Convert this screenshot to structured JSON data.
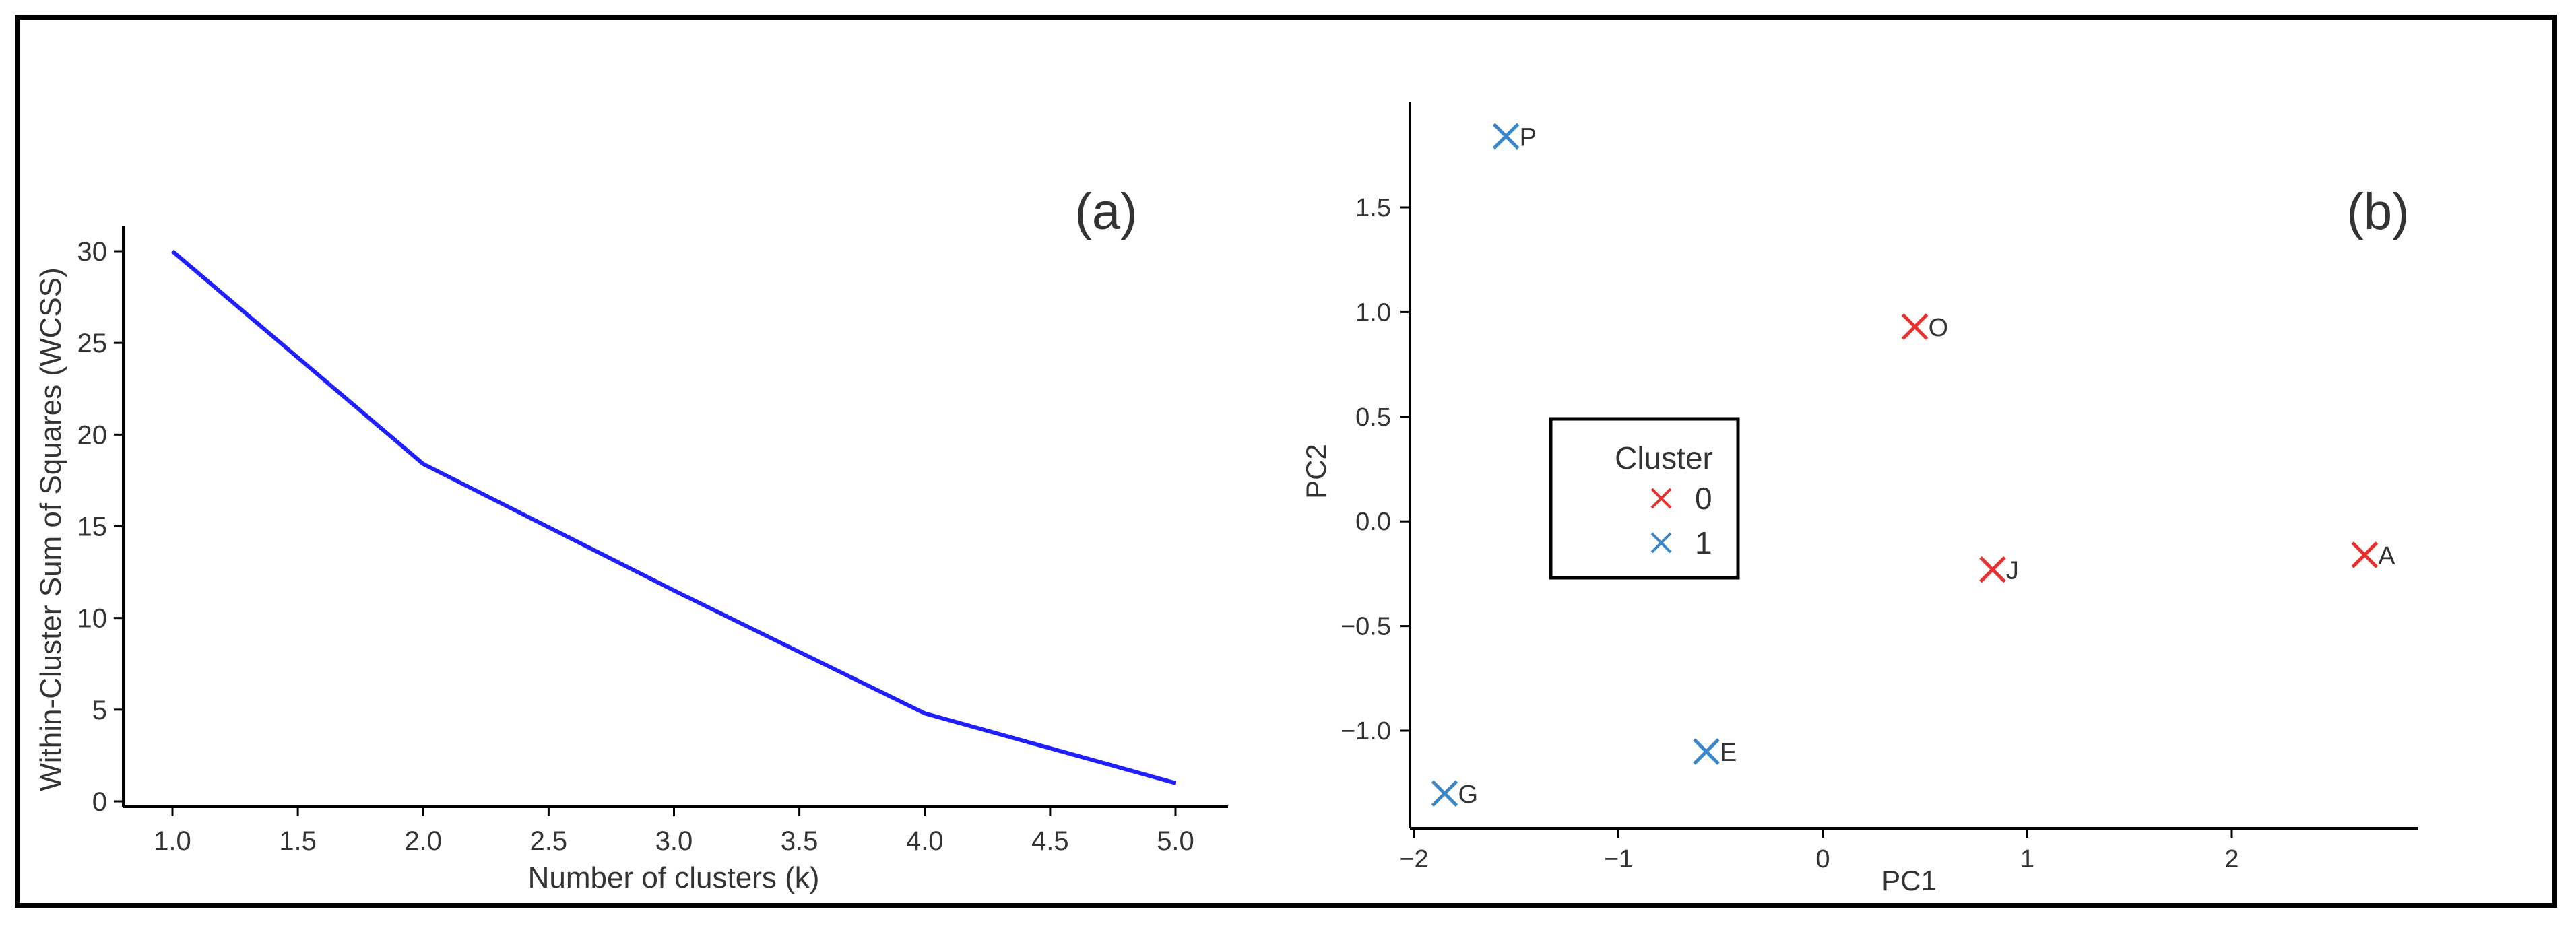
{
  "chart_data": [
    {
      "type": "line",
      "panel_label": "(a)",
      "xlabel": "Number of clusters (k)",
      "ylabel": "Within-Cluster Sum of Squares (WCSS)",
      "xlim": [
        0.8,
        5.2
      ],
      "ylim": [
        -0.5,
        31.5
      ],
      "xticks": [
        "1.0",
        "1.5",
        "2.0",
        "2.5",
        "3.0",
        "3.5",
        "4.0",
        "4.5",
        "5.0"
      ],
      "yticks": [
        "0",
        "5",
        "10",
        "15",
        "20",
        "25",
        "30"
      ],
      "series": [
        {
          "color": "#1f1fff",
          "x": [
            1,
            2,
            3,
            4,
            5
          ],
          "y": [
            30.0,
            18.4,
            11.5,
            4.8,
            1.0
          ]
        }
      ],
      "grid": false
    },
    {
      "type": "scatter",
      "panel_label": "(b)",
      "xlabel": "PC1",
      "ylabel": "PC2",
      "xlim": [
        -2.05,
        2.95
      ],
      "ylim": [
        -1.45,
        1.98
      ],
      "xticks": [
        "−2",
        "−1",
        "0",
        "1",
        "2"
      ],
      "yticks": [
        "−1.0",
        "−0.5",
        "0.0",
        "0.5",
        "1.0",
        "1.5"
      ],
      "legend": {
        "title": "Cluster",
        "placement": "center-left",
        "entries": [
          {
            "label": "0",
            "color": "#e8312f"
          },
          {
            "label": "1",
            "color": "#3b86c6"
          }
        ]
      },
      "points": [
        {
          "label": "P",
          "x": -1.55,
          "y": 1.84,
          "cluster": 1
        },
        {
          "label": "O",
          "x": 0.45,
          "y": 0.93,
          "cluster": 0
        },
        {
          "label": "J",
          "x": 0.83,
          "y": -0.23,
          "cluster": 0
        },
        {
          "label": "A",
          "x": 2.65,
          "y": -0.16,
          "cluster": 0
        },
        {
          "label": "E",
          "x": -0.57,
          "y": -1.1,
          "cluster": 1
        },
        {
          "label": "G",
          "x": -1.85,
          "y": -1.3,
          "cluster": 1
        }
      ],
      "grid": false
    }
  ]
}
